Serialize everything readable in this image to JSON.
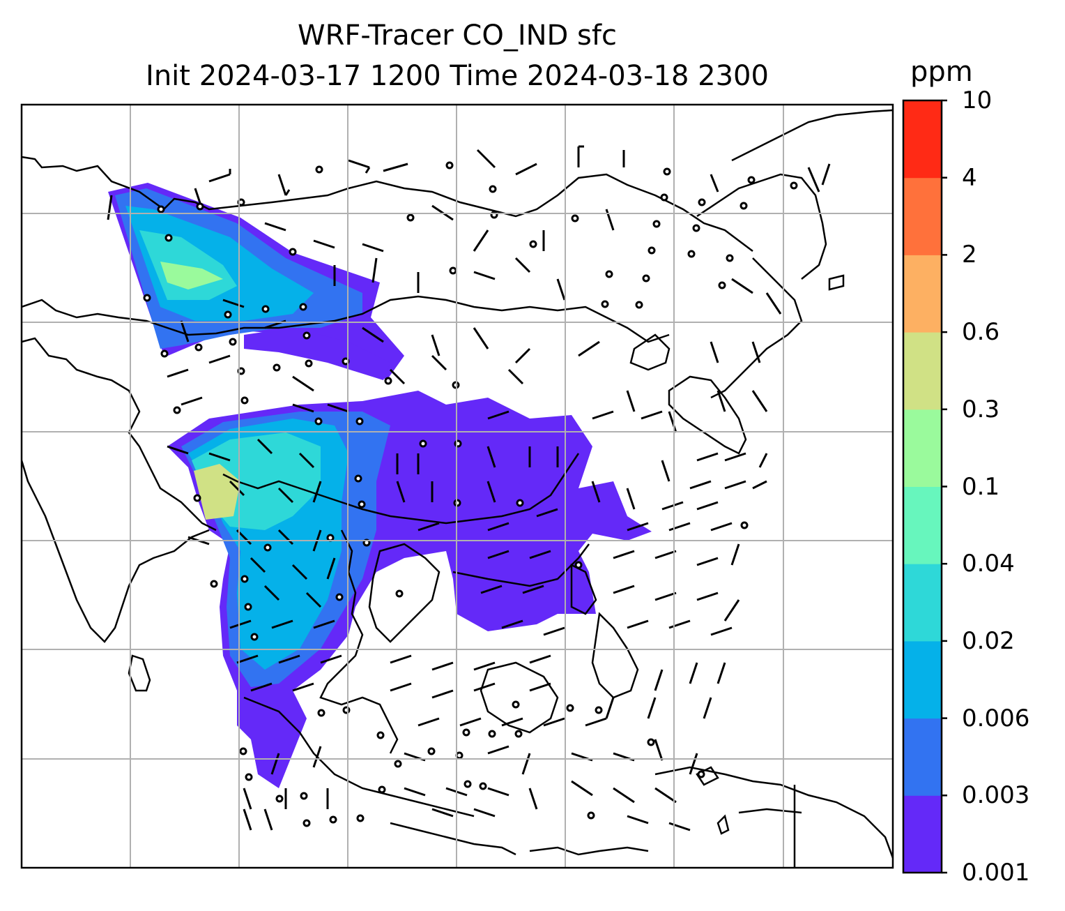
{
  "figure": {
    "title_line1": "WRF-Tracer CO_IND sfc",
    "title_line2": "Init 2024-03-17 1200 Time 2024-03-18 2300"
  },
  "colorbar": {
    "unit": "ppm",
    "levels": [
      "0.001",
      "0.003",
      "0.006",
      "0.02",
      "0.04",
      "0.1",
      "0.3",
      "0.6",
      "2",
      "4",
      "10"
    ],
    "colors": [
      "#6429f8",
      "#3273f1",
      "#05b1e9",
      "#2ed8d8",
      "#67f6bd",
      "#9afa9c",
      "#d0e185",
      "#fdb062",
      "#ff713b",
      "#ff2a15"
    ]
  },
  "map": {
    "gridlines": true,
    "tracer_field": "CO_IND",
    "overlay": "surface wind barbs"
  }
}
